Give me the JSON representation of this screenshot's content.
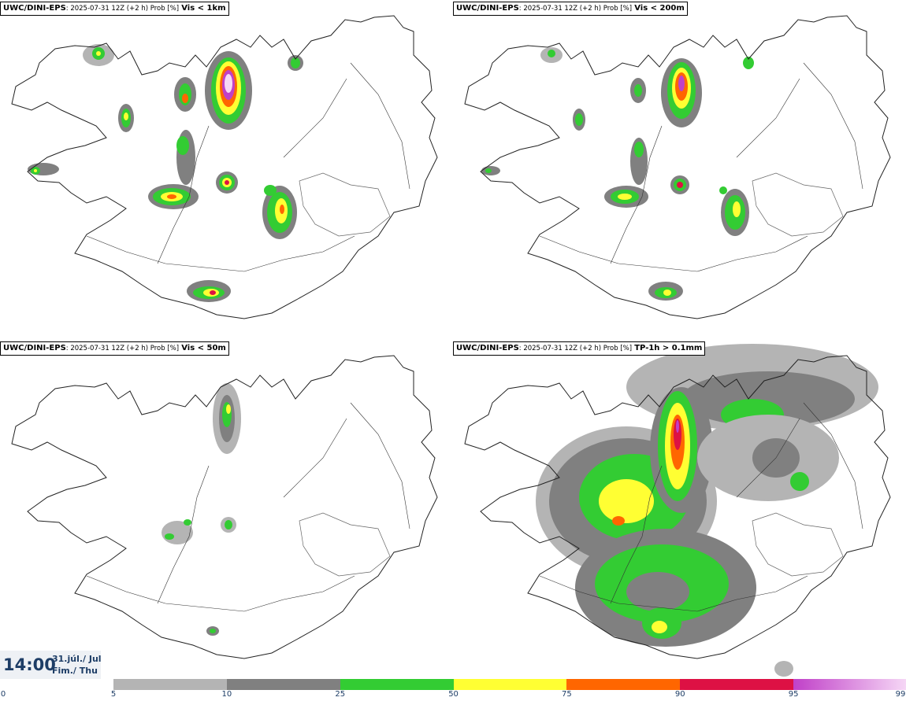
{
  "panels": [
    {
      "model": "UWC/DINI-EPS",
      "meta": ": 2025-07-31 12Z (+2 h) Prob [%]",
      "param": "Vis < 1km"
    },
    {
      "model": "UWC/DINI-EPS",
      "meta": ": 2025-07-31 12Z (+2 h) Prob [%]",
      "param": "Vis < 200m"
    },
    {
      "model": "UWC/DINI-EPS",
      "meta": ": 2025-07-31 12Z (+2 h) Prob [%]",
      "param": "Vis < 50m"
    },
    {
      "model": "UWC/DINI-EPS",
      "meta": ": 2025-07-31 12Z (+2 h) Prob [%]",
      "param": "TP-1h > 0.1mm"
    }
  ],
  "valid_time": {
    "time": "14:00",
    "date_line1": "31.júl./ Jul",
    "date_line2": "Fim./ Thu"
  },
  "legend": {
    "ticks": [
      "0",
      "5",
      "10",
      "25",
      "50",
      "75",
      "90",
      "95",
      "99"
    ],
    "bins": [
      {
        "from": 5,
        "to": 10,
        "color": "#b4b4b4"
      },
      {
        "from": 10,
        "to": 25,
        "color": "#808080"
      },
      {
        "from": 25,
        "to": 50,
        "color": "#33cc33"
      },
      {
        "from": 50,
        "to": 75,
        "color": "#ffff33"
      },
      {
        "from": 75,
        "to": 90,
        "color": "#ff6600"
      },
      {
        "from": 90,
        "to": 95,
        "color": "#dd1144"
      },
      {
        "from": 95,
        "to": 99,
        "color": "#c040c8",
        "color_end": "#f6d8f6"
      }
    ]
  },
  "colors": {
    "coast": "#222222",
    "accent_text": "#1d3d66",
    "background": "#ffffff"
  }
}
